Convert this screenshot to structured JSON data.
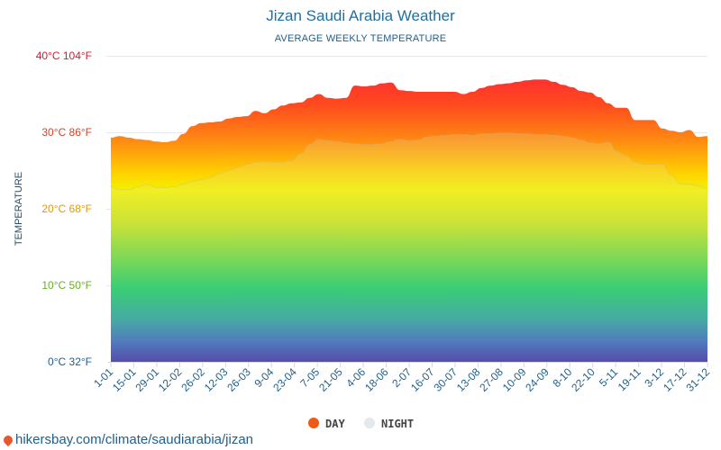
{
  "colors": {
    "day": "#f05a14",
    "night": "#e4e9ee",
    "grid": "#e8e8e8",
    "ytick_colors": [
      "#1f5f8a",
      "#6ab023",
      "#e09a0b",
      "#d7422a",
      "#c81f35"
    ],
    "source_text": "#1f5f8a"
  },
  "source": {
    "url": "hikersbay.com/climate/saudiarabia/jizan",
    "icon": "map-pin-icon"
  },
  "chart_data": {
    "type": "area",
    "title": "Jizan Saudi Arabia Weather",
    "subtitle": "AVERAGE WEEKLY TEMPERATURE",
    "ylabel": "TEMPERATURE",
    "xlabel": "",
    "ylim": [
      0,
      40
    ],
    "yticks": [
      {
        "value": 0,
        "label": "0°C 32°F"
      },
      {
        "value": 10,
        "label": "10°C 50°F"
      },
      {
        "value": 20,
        "label": "20°C 68°F"
      },
      {
        "value": 30,
        "label": "30°C 86°F"
      },
      {
        "value": 40,
        "label": "40°C 104°F"
      }
    ],
    "x_tick_labels": [
      "1-01",
      "15-01",
      "29-01",
      "12-02",
      "26-02",
      "12-03",
      "26-03",
      "9-04",
      "23-04",
      "7-05",
      "21-05",
      "4-06",
      "18-06",
      "2-07",
      "16-07",
      "30-07",
      "13-08",
      "27-08",
      "10-09",
      "24-09",
      "8-10",
      "22-10",
      "5-11",
      "19-11",
      "3-12",
      "17-12",
      "31-12"
    ],
    "legend": [
      {
        "key": "day",
        "label": "DAY"
      },
      {
        "key": "night",
        "label": "NIGHT"
      }
    ],
    "grid": true,
    "series": [
      {
        "name": "DAY",
        "values": [
          29.3,
          29.5,
          29.3,
          29.1,
          29,
          28.8,
          28.7,
          28.9,
          29.8,
          30.8,
          31.2,
          31.3,
          31.4,
          31.8,
          32,
          32.1,
          32.8,
          32.5,
          33,
          33.5,
          33.8,
          33.9,
          34.5,
          35,
          34.5,
          34.4,
          34.5,
          36.1,
          36,
          36.1,
          36.4,
          36.5,
          35.5,
          35.4,
          35.3,
          35.3,
          35.3,
          35.3,
          35.3,
          35,
          35.3,
          35.8,
          36.1,
          36.3,
          36.4,
          36.6,
          36.8,
          36.9,
          36.9,
          36.6,
          36.2,
          35.9,
          35.4,
          35.2,
          34.6,
          33.8,
          33.2,
          33.2,
          31.6,
          31.6,
          31.6,
          30.5,
          30.2,
          30,
          30.3,
          29.4,
          29.5
        ]
      },
      {
        "name": "NIGHT",
        "values": [
          22.9,
          22.5,
          22.5,
          22.9,
          23.2,
          22.8,
          22.8,
          22.9,
          23.2,
          23.6,
          23.8,
          24.1,
          24.6,
          25,
          25.4,
          25.8,
          26.1,
          26.2,
          26.1,
          26.1,
          26.3,
          27.2,
          28.4,
          29.1,
          28.9,
          28.8,
          28.6,
          28.5,
          28.4,
          28.4,
          28.5,
          28.8,
          29.1,
          28.9,
          29,
          29.4,
          29.5,
          29.6,
          29.7,
          29.7,
          29.6,
          29.8,
          29.8,
          29.9,
          29.9,
          29.8,
          29.8,
          29.7,
          29.7,
          29.6,
          29.5,
          29.3,
          29,
          28.6,
          28.5,
          28.7,
          27.5,
          26.9,
          26.1,
          25.8,
          25.8,
          25.9,
          24.4,
          23.3,
          23.2,
          23,
          22.6
        ]
      }
    ]
  }
}
